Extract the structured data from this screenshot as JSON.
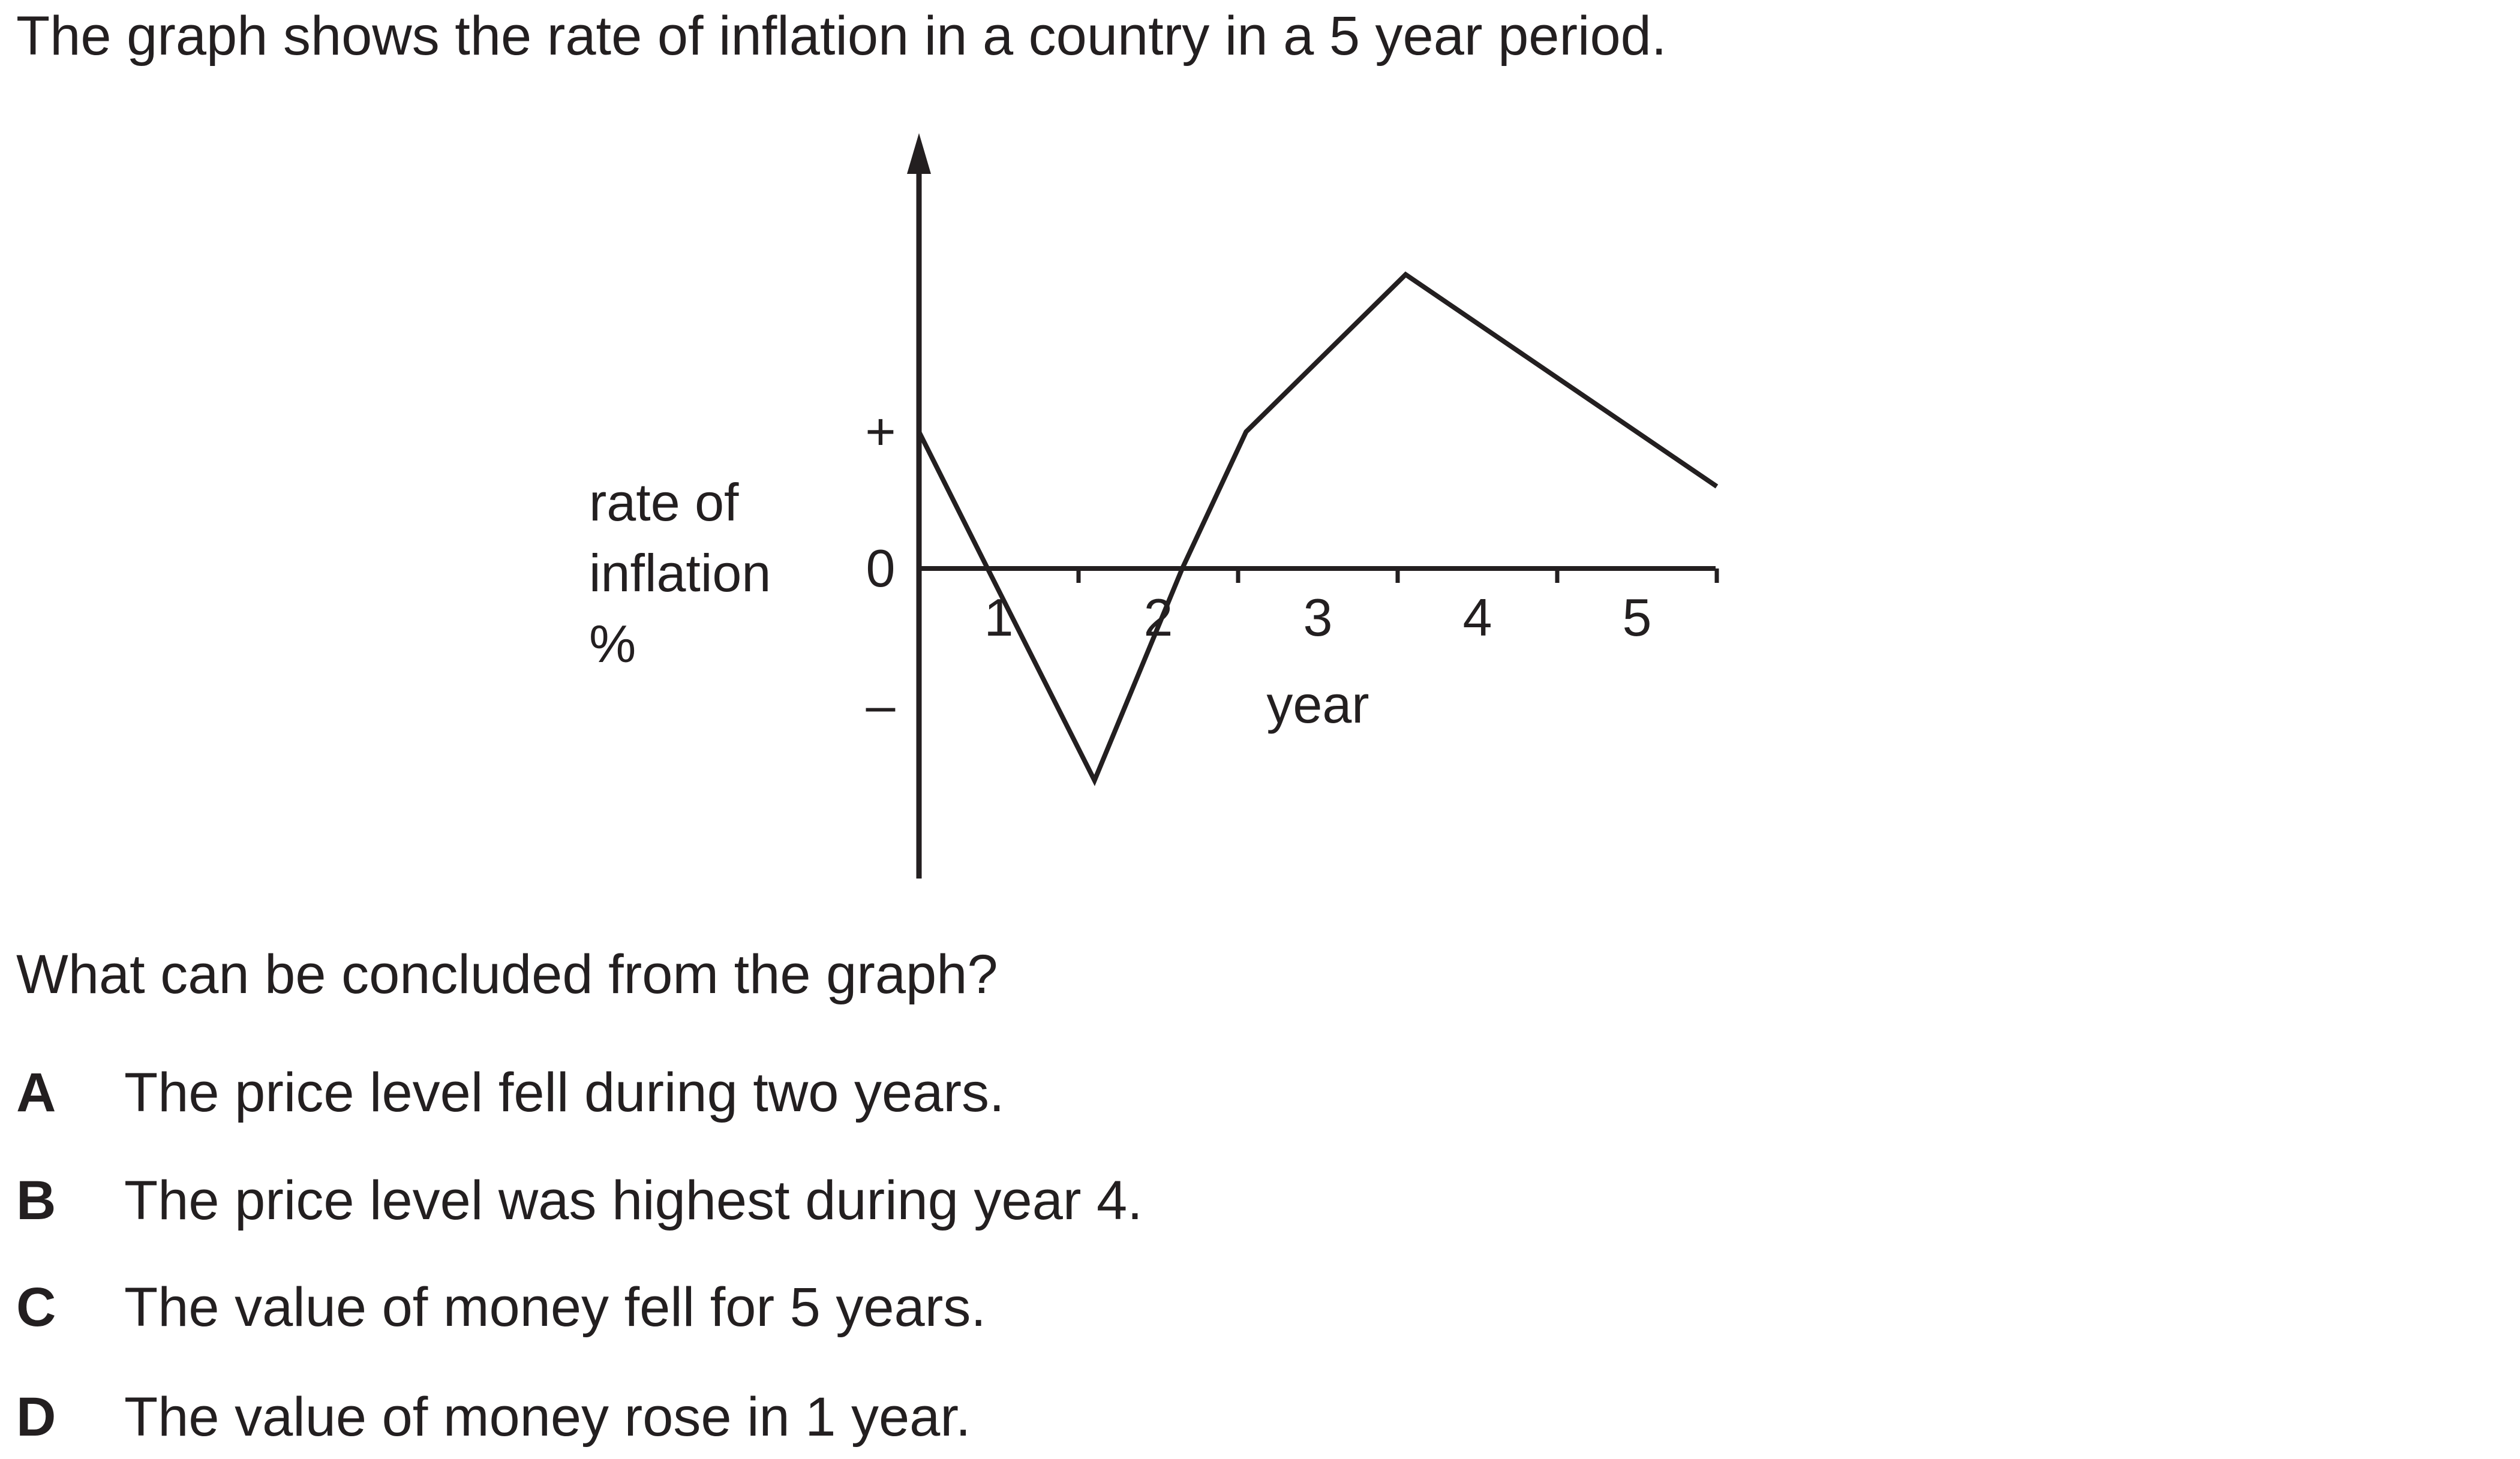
{
  "intro": "The graph shows the rate of inflation in a country in a 5 year period.",
  "question": "What can be concluded from the graph?",
  "options": [
    {
      "letter": "A",
      "text": "The price level fell during two years."
    },
    {
      "letter": "B",
      "text": "The price level was highest during year 4."
    },
    {
      "letter": "C",
      "text": "The value of money fell for 5 years."
    },
    {
      "letter": "D",
      "text": "The value of money rose in 1 year."
    }
  ],
  "chart_data": {
    "type": "line",
    "title": "",
    "xlabel": "year",
    "ylabel": [
      "rate of",
      "inflation",
      "%"
    ],
    "x_ticks": [
      "1",
      "2",
      "3",
      "4",
      "5"
    ],
    "y_ticks": [
      "+",
      "0",
      "–"
    ],
    "xlim": [
      0.5,
      5.5
    ],
    "ylim": [
      -2.2,
      4.3
    ],
    "grid": false,
    "series": [
      {
        "x": [
          0.5,
          0.93,
          1.6,
          2.15,
          2.55,
          3.55,
          5.5
        ],
        "y": [
          1.0,
          0.0,
          -1.55,
          0.0,
          1.0,
          2.15,
          0.6
        ]
      }
    ]
  }
}
